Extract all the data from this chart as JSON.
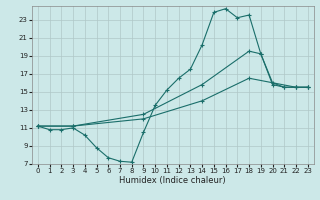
{
  "xlabel": "Humidex (Indice chaleur)",
  "bg_color": "#cce8e8",
  "line_color": "#1a6e6a",
  "grid_color": "#b0c8c8",
  "xlim": [
    -0.5,
    23.5
  ],
  "ylim": [
    7,
    24.5
  ],
  "yticks": [
    7,
    9,
    11,
    13,
    15,
    17,
    19,
    21,
    23
  ],
  "xticks": [
    0,
    1,
    2,
    3,
    4,
    5,
    6,
    7,
    8,
    9,
    10,
    11,
    12,
    13,
    14,
    15,
    16,
    17,
    18,
    19,
    20,
    21,
    22,
    23
  ],
  "series": [
    {
      "x": [
        0,
        1,
        2,
        3,
        4,
        5,
        6,
        7,
        8,
        9,
        10,
        11,
        12,
        13,
        14,
        15,
        16,
        17,
        18,
        19,
        20,
        21,
        22,
        23
      ],
      "y": [
        11.2,
        10.8,
        10.8,
        11.0,
        10.2,
        8.8,
        7.7,
        7.3,
        7.2,
        10.5,
        13.5,
        15.2,
        16.5,
        17.5,
        20.2,
        23.8,
        24.2,
        23.2,
        23.5,
        19.2,
        15.8,
        15.5,
        15.5,
        15.5
      ]
    },
    {
      "x": [
        0,
        3,
        9,
        14,
        18,
        19,
        20,
        21,
        22,
        23
      ],
      "y": [
        11.2,
        11.2,
        12.5,
        15.8,
        19.5,
        19.2,
        16.0,
        15.5,
        15.5,
        15.5
      ]
    },
    {
      "x": [
        0,
        3,
        9,
        14,
        18,
        22,
        23
      ],
      "y": [
        11.2,
        11.2,
        12.0,
        14.0,
        16.5,
        15.5,
        15.5
      ]
    }
  ]
}
